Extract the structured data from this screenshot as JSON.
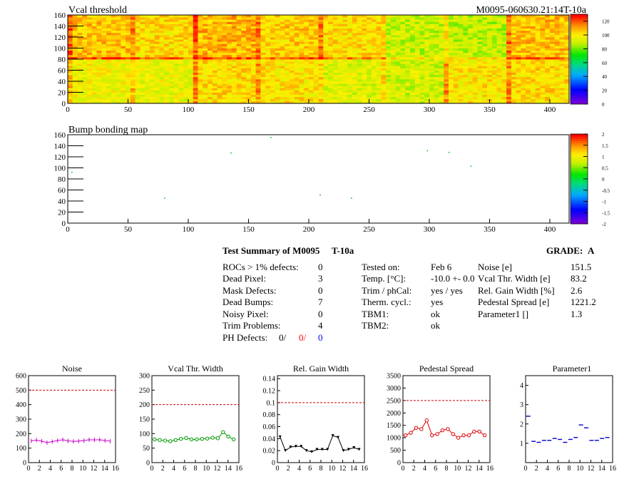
{
  "header": {
    "title_left": "Vcal threshold",
    "title_right": "M0095-060630.21:14T-10a"
  },
  "bump_title": "Bump bonding map",
  "heatmap": {
    "x_ticks": [
      "0",
      "50",
      "100",
      "150",
      "200",
      "250",
      "300",
      "350",
      "400"
    ],
    "y_ticks": [
      "0",
      "20",
      "40",
      "60",
      "80",
      "100",
      "120",
      "140",
      "160"
    ],
    "xlim": [
      0,
      416
    ],
    "ylim": [
      0,
      160
    ],
    "colorbar_ticks": [
      "0",
      "20",
      "40",
      "60",
      "80",
      "100",
      "120"
    ],
    "colorbar_range": [
      0,
      130
    ]
  },
  "bump": {
    "x_ticks": [
      "0",
      "50",
      "100",
      "150",
      "200",
      "250",
      "300",
      "350",
      "400"
    ],
    "y_ticks": [
      "0",
      "20",
      "40",
      "60",
      "80",
      "100",
      "120",
      "140",
      "160"
    ],
    "colorbar_ticks": [
      "-2",
      "-1.5",
      "-1",
      "-0.5",
      "0",
      "0.5",
      "1",
      "1.5",
      "2"
    ],
    "points": [
      [
        168,
        156
      ],
      [
        135,
        128
      ],
      [
        298,
        132
      ],
      [
        316,
        129
      ],
      [
        334,
        104
      ],
      [
        3,
        93
      ],
      [
        80,
        46
      ],
      [
        209,
        52
      ],
      [
        235,
        46
      ]
    ]
  },
  "summary": {
    "title": "Test Summary of M0095",
    "test": "T-10a",
    "grade_label": "GRADE:",
    "grade": "A",
    "left": [
      {
        "label": "ROCs > 1% defects:",
        "value": "0"
      },
      {
        "label": "Dead Pixel:",
        "value": "3"
      },
      {
        "label": "Mask Defects:",
        "value": "0"
      },
      {
        "label": "Dead Bumps:",
        "value": "7"
      },
      {
        "label": "Noisy Pixel:",
        "value": "0"
      },
      {
        "label": "Trim Problems:",
        "value": "4"
      }
    ],
    "ph_label": "PH Defects:",
    "ph_values": [
      "0/",
      "0/",
      "0"
    ],
    "middle": [
      {
        "label": "Tested on:",
        "value": "Feb 6"
      },
      {
        "label": "Temp. [°C]:",
        "value": "-10.0 +- 0.0"
      },
      {
        "label": "Trim / phCal:",
        "value": "yes / yes"
      },
      {
        "label": "Therm. cycl.:",
        "value": "yes"
      },
      {
        "label": "TBM1:",
        "value": "ok"
      },
      {
        "label": "TBM2:",
        "value": "ok"
      }
    ],
    "right": [
      {
        "label": "Noise [e]",
        "value": "151.5"
      },
      {
        "label": "Vcal Thr. Width [e]",
        "value": "83.2"
      },
      {
        "label": "Rel. Gain Width [%]",
        "value": "2.6"
      },
      {
        "label": "Pedestal Spread [e]",
        "value": "1221.2"
      },
      {
        "label": "Parameter1 []",
        "value": "1.3"
      }
    ]
  },
  "chart_data": [
    {
      "type": "line",
      "title": "Noise",
      "color": "#cc00cc",
      "ylim": [
        0,
        600
      ],
      "yticks": [
        "0",
        "100",
        "200",
        "300",
        "400",
        "500",
        "600"
      ],
      "ref": 500,
      "x": [
        0,
        1,
        2,
        3,
        4,
        5,
        6,
        7,
        8,
        9,
        10,
        11,
        12,
        13,
        14,
        15
      ],
      "values": [
        150,
        155,
        148,
        138,
        145,
        152,
        158,
        150,
        146,
        148,
        152,
        158,
        157,
        158,
        152,
        148
      ]
    },
    {
      "type": "line",
      "title": "Vcal Thr. Width",
      "color": "#009900",
      "ylim": [
        0,
        300
      ],
      "yticks": [
        "0",
        "50",
        "100",
        "150",
        "200",
        "250",
        "300"
      ],
      "ref": 200,
      "x": [
        0,
        1,
        2,
        3,
        4,
        5,
        6,
        7,
        8,
        9,
        10,
        11,
        12,
        13,
        14,
        15
      ],
      "values": [
        80,
        78,
        76,
        74,
        78,
        82,
        85,
        80,
        80,
        82,
        83,
        86,
        84,
        105,
        90,
        80
      ]
    },
    {
      "type": "line",
      "title": "Rel. Gain Width",
      "color": "#000000",
      "ylim": [
        0,
        0.145
      ],
      "yticks": [
        "0",
        "0.02",
        "0.04",
        "0.06",
        "0.08",
        "0.1",
        "0.12",
        "0.14"
      ],
      "ref": 0.1,
      "x": [
        0,
        1,
        2,
        3,
        4,
        5,
        6,
        7,
        8,
        9,
        10,
        11,
        12,
        13,
        14,
        15
      ],
      "values": [
        0.043,
        0.02,
        0.026,
        0.027,
        0.027,
        0.02,
        0.018,
        0.022,
        0.022,
        0.022,
        0.045,
        0.042,
        0.02,
        0.022,
        0.025,
        0.022
      ]
    },
    {
      "type": "line",
      "title": "Pedestal Spread",
      "color": "#dd0000",
      "ylim": [
        0,
        3500
      ],
      "yticks": [
        "0",
        "500",
        "1000",
        "1500",
        "2000",
        "2500",
        "3000",
        "3500"
      ],
      "ref": 2500,
      "x": [
        0,
        1,
        2,
        3,
        4,
        5,
        6,
        7,
        8,
        9,
        10,
        11,
        12,
        13,
        14,
        15
      ],
      "values": [
        1100,
        1200,
        1400,
        1350,
        1700,
        1100,
        1150,
        1300,
        1350,
        1150,
        1000,
        1100,
        1100,
        1250,
        1250,
        1100
      ]
    },
    {
      "type": "scatter",
      "title": "Parameter1",
      "color": "#0000cc",
      "ylim": [
        0,
        4.5
      ],
      "yticks": [
        "1",
        "2",
        "3",
        "4"
      ],
      "ref": null,
      "x": [
        0,
        1,
        2,
        3,
        4,
        5,
        6,
        7,
        8,
        9,
        10,
        11,
        12,
        13,
        14,
        15
      ],
      "values": [
        2.4,
        1.1,
        1.05,
        1.15,
        1.15,
        1.25,
        1.2,
        1.05,
        1.2,
        1.3,
        1.95,
        1.8,
        1.15,
        1.15,
        1.25,
        1.3
      ]
    }
  ],
  "colors": {
    "frame": "#000000",
    "ref_line": "#cc0000",
    "ph_red": "#ff0000",
    "ph_blue": "#0000ff"
  }
}
